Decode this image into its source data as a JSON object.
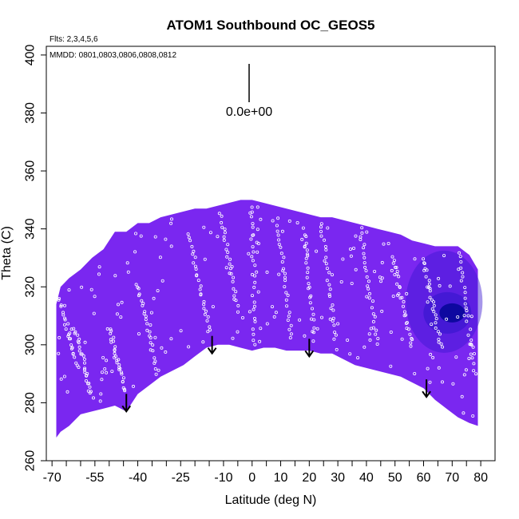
{
  "chart_data": {
    "type": "heatmap",
    "title": "ATOM1 Southbound OC_GEOS5",
    "note_flights": "Flts: 2,3,4,5,6",
    "note_dates": "MMDD: 0801,0803,0806,0808,0812",
    "xlabel": "Latitude (deg N)",
    "ylabel": "Theta (C)",
    "xlim": [
      -72,
      85
    ],
    "ylim": [
      260,
      403
    ],
    "x_ticks": [
      -70,
      -55,
      -40,
      -25,
      -10,
      0,
      10,
      20,
      30,
      40,
      50,
      60,
      70,
      80
    ],
    "y_ticks": [
      260,
      280,
      300,
      320,
      340,
      360,
      380,
      400
    ],
    "scale_label": "0.0e+00",
    "colors": {
      "field": "#7a27f0",
      "field_dark": "#3a17d0",
      "field_darkest": "#0e08a0",
      "obs_points": "#ffffff",
      "arrows": "#000000"
    },
    "coverage": {
      "lat": [
        -68.5,
        -67,
        -64,
        -60,
        -56,
        -52,
        -48,
        -44,
        -40,
        -36,
        -32,
        -28,
        -24,
        -20,
        -16,
        -12,
        -8,
        -4,
        0,
        4,
        8,
        12,
        16,
        20,
        24,
        28,
        32,
        36,
        40,
        44,
        48,
        52,
        56,
        60,
        64,
        68,
        72,
        76,
        79
      ],
      "theta_top": [
        314,
        320,
        323,
        326,
        330,
        333,
        339,
        339,
        342,
        342,
        344,
        345,
        346,
        347,
        347,
        348,
        349,
        350,
        350,
        349,
        348,
        347,
        346,
        345,
        344,
        344,
        343,
        342,
        341,
        340,
        339,
        338,
        336,
        335,
        334,
        334,
        334,
        331,
        326
      ],
      "theta_bottom": [
        268,
        270,
        272,
        276,
        277,
        278,
        279,
        277,
        283,
        286,
        289,
        291,
        293,
        296,
        299,
        300,
        300,
        299,
        298,
        299,
        299,
        298,
        298,
        298,
        297,
        297,
        295,
        293,
        292,
        291,
        290,
        289,
        287,
        285,
        281,
        278,
        275,
        273,
        272
      ]
    },
    "enhanced_region": {
      "lat": 70,
      "theta": 311
    },
    "arrows": [
      {
        "lat": -44,
        "theta_tip": 277
      },
      {
        "lat": -14,
        "theta_tip": 297
      },
      {
        "lat": 20,
        "theta_tip": 296
      },
      {
        "lat": 61,
        "theta_tip": 282
      }
    ],
    "observations": {
      "tracks": [
        {
          "lat_start": -68,
          "lat_end": -61,
          "theta_start": 318,
          "theta_end": 292
        },
        {
          "lat_start": -62,
          "lat_end": -56,
          "theta_start": 306,
          "theta_end": 282
        },
        {
          "lat_start": -50,
          "lat_end": -44,
          "theta_start": 306,
          "theta_end": 284
        },
        {
          "lat_start": -40,
          "lat_end": -33,
          "theta_start": 320,
          "theta_end": 290
        },
        {
          "lat_start": -22,
          "lat_end": -15,
          "theta_start": 338,
          "theta_end": 305
        },
        {
          "lat_start": -11,
          "lat_end": -5,
          "theta_start": 345,
          "theta_end": 312
        },
        {
          "lat_start": 0,
          "lat_end": 1,
          "theta_start": 348,
          "theta_end": 300
        },
        {
          "lat_start": 9,
          "lat_end": 14,
          "theta_start": 343,
          "theta_end": 302
        },
        {
          "lat_start": 18,
          "lat_end": 22,
          "theta_start": 340,
          "theta_end": 302
        },
        {
          "lat_start": 24,
          "lat_end": 29,
          "theta_start": 344,
          "theta_end": 303
        },
        {
          "lat_start": 38,
          "lat_end": 44,
          "theta_start": 340,
          "theta_end": 300
        },
        {
          "lat_start": 49,
          "lat_end": 56,
          "theta_start": 330,
          "theta_end": 300
        },
        {
          "lat_start": 60,
          "lat_end": 66,
          "theta_start": 330,
          "theta_end": 300
        },
        {
          "lat_start": 72,
          "lat_end": 78,
          "theta_start": 334,
          "theta_end": 290
        }
      ]
    }
  }
}
